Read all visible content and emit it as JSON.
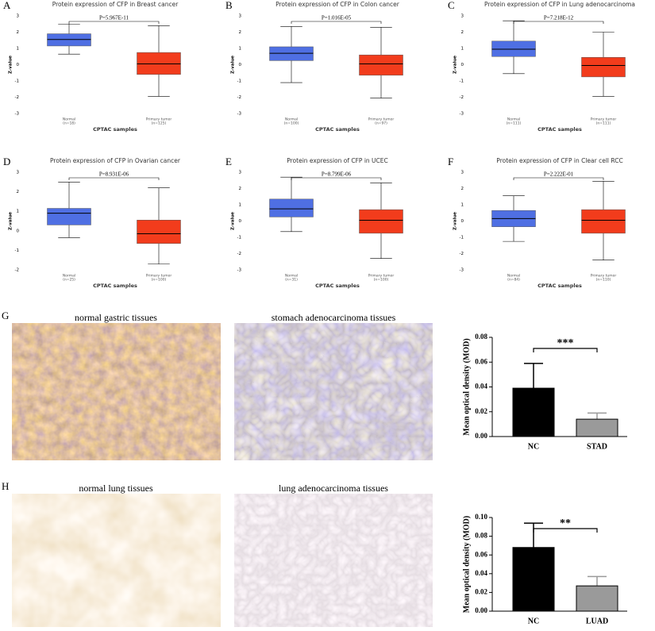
{
  "chart_data": [
    {
      "type": "box",
      "panel": "A",
      "title": "Protein expression of CFP in Breast cancer",
      "annotation": "P=5.967E-11",
      "xlabel": "CPTAC samples",
      "ylabel": "Z-value",
      "categories": [
        "Normal",
        "Primary tumor"
      ],
      "counts": [
        "(n=18)",
        "(n=125)"
      ],
      "ylim": [
        -3,
        3
      ],
      "yticks": [
        -3,
        -2,
        -1,
        0,
        1,
        2,
        3
      ],
      "boxes": [
        {
          "min": 0.65,
          "q1": 1.15,
          "median": 1.55,
          "q3": 1.9,
          "max": 2.5,
          "color": "#4f6fe3"
        },
        {
          "min": -1.95,
          "q1": -0.6,
          "median": 0.05,
          "q3": 0.75,
          "max": 2.4,
          "color": "#f23c1c"
        }
      ]
    },
    {
      "type": "box",
      "panel": "B",
      "title": "Protein expression of CFP in Colon cancer",
      "annotation": "P=1.016E-05",
      "xlabel": "CPTAC samples",
      "ylabel": "Z-value",
      "categories": [
        "Normal",
        "Primary tumor"
      ],
      "counts": [
        "(n=100)",
        "(n=97)"
      ],
      "ylim": [
        -3,
        3
      ],
      "yticks": [
        -3,
        -2,
        -1,
        0,
        1,
        2,
        3
      ],
      "boxes": [
        {
          "min": -1.1,
          "q1": 0.25,
          "median": 0.7,
          "q3": 1.1,
          "max": 2.35,
          "color": "#4f6fe3"
        },
        {
          "min": -2.05,
          "q1": -0.65,
          "median": 0.05,
          "q3": 0.6,
          "max": 2.3,
          "color": "#f23c1c"
        }
      ]
    },
    {
      "type": "box",
      "panel": "C",
      "title": "Protein expression of CFP in Lung adenocarcinoma",
      "annotation": "P=7.218E-12",
      "xlabel": "CPTAC samples",
      "ylabel": "Z-value",
      "categories": [
        "Normal",
        "Primary tumor"
      ],
      "counts": [
        "(n=111)",
        "(n=111)"
      ],
      "ylim": [
        -3,
        3
      ],
      "yticks": [
        -3,
        -2,
        -1,
        0,
        1,
        2,
        3
      ],
      "boxes": [
        {
          "min": -0.55,
          "q1": 0.5,
          "median": 0.95,
          "q3": 1.45,
          "max": 2.7,
          "color": "#4f6fe3"
        },
        {
          "min": -1.95,
          "q1": -0.75,
          "median": -0.05,
          "q3": 0.45,
          "max": 2.0,
          "color": "#f23c1c"
        }
      ]
    },
    {
      "type": "box",
      "panel": "D",
      "title": "Protein expression of CFP in Ovarian cancer",
      "annotation": "P=8.931E-06",
      "xlabel": "CPTAC samples",
      "ylabel": "Z-value",
      "categories": [
        "Normal",
        "Primary tumor"
      ],
      "counts": [
        "(n=25)",
        "(n=100)"
      ],
      "ylim": [
        -2,
        3
      ],
      "yticks": [
        -2,
        -1,
        0,
        1,
        2,
        3
      ],
      "boxes": [
        {
          "min": -0.35,
          "q1": 0.3,
          "median": 0.9,
          "q3": 1.15,
          "max": 2.5,
          "color": "#4f6fe3"
        },
        {
          "min": -1.7,
          "q1": -0.65,
          "median": -0.15,
          "q3": 0.55,
          "max": 2.2,
          "color": "#f23c1c"
        }
      ]
    },
    {
      "type": "box",
      "panel": "E",
      "title": "Protein expression of CFP in UCEC",
      "annotation": "P=8.799E-06",
      "xlabel": "CPTAC samples",
      "ylabel": "Z-value",
      "categories": [
        "Normal",
        "Primary tumor"
      ],
      "counts": [
        "(n=31)",
        "(n=100)"
      ],
      "ylim": [
        -3,
        3
      ],
      "yticks": [
        -3,
        -2,
        -1,
        0,
        1,
        2,
        3
      ],
      "boxes": [
        {
          "min": -0.65,
          "q1": 0.25,
          "median": 0.75,
          "q3": 1.35,
          "max": 2.7,
          "color": "#4f6fe3"
        },
        {
          "min": -2.3,
          "q1": -0.75,
          "median": 0.05,
          "q3": 0.7,
          "max": 2.35,
          "color": "#f23c1c"
        }
      ]
    },
    {
      "type": "box",
      "panel": "F",
      "title": "Protein expression of CFP in Clear cell RCC",
      "annotation": "P=2.222E-01",
      "xlabel": "CPTAC samples",
      "ylabel": "Z-value",
      "categories": [
        "Normal",
        "Primary tumor"
      ],
      "counts": [
        "(n=84)",
        "(n=110)"
      ],
      "ylim": [
        -3,
        3
      ],
      "yticks": [
        -3,
        -2,
        -1,
        0,
        1,
        2,
        3
      ],
      "boxes": [
        {
          "min": -1.25,
          "q1": -0.35,
          "median": 0.15,
          "q3": 0.65,
          "max": 1.55,
          "color": "#4f6fe3"
        },
        {
          "min": -2.4,
          "q1": -0.75,
          "median": 0.05,
          "q3": 0.7,
          "max": 2.45,
          "color": "#f23c1c"
        }
      ]
    },
    {
      "type": "bar",
      "panel": "G",
      "image_titles": [
        "normal gastric tissues",
        "stomach adenocarcinoma tissues"
      ],
      "ylabel": "Mean optical density (MOD)",
      "annotation": "***",
      "categories": [
        "NC",
        "STAD"
      ],
      "values": [
        0.039,
        0.014
      ],
      "errors": [
        0.02,
        0.005
      ],
      "colors": [
        "#000000",
        "#9a9a9a"
      ],
      "ylim": [
        0,
        0.08
      ],
      "yticks": [
        {
          "value": 0,
          "label": "0.00"
        },
        {
          "value": 0.02,
          "label": "0.02"
        },
        {
          "value": 0.04,
          "label": "0.04"
        },
        {
          "value": 0.06,
          "label": "0.06"
        },
        {
          "value": 0.08,
          "label": "0.08"
        }
      ]
    },
    {
      "type": "bar",
      "panel": "H",
      "image_titles": [
        "normal lung tissues",
        "lung adenocarcinoma tissues"
      ],
      "ylabel": "Mean optical density (MOD)",
      "annotation": "**",
      "categories": [
        "NC",
        "LUAD"
      ],
      "values": [
        0.068,
        0.027
      ],
      "errors": [
        0.026,
        0.01
      ],
      "colors": [
        "#000000",
        "#9a9a9a"
      ],
      "ylim": [
        0,
        0.1
      ],
      "yticks": [
        {
          "value": 0,
          "label": "0.00"
        },
        {
          "value": 0.02,
          "label": "0.02"
        },
        {
          "value": 0.04,
          "label": "0.04"
        },
        {
          "value": 0.06,
          "label": "0.06"
        },
        {
          "value": 0.08,
          "label": "0.08"
        },
        {
          "value": 0.1,
          "label": "0.10"
        }
      ]
    }
  ]
}
